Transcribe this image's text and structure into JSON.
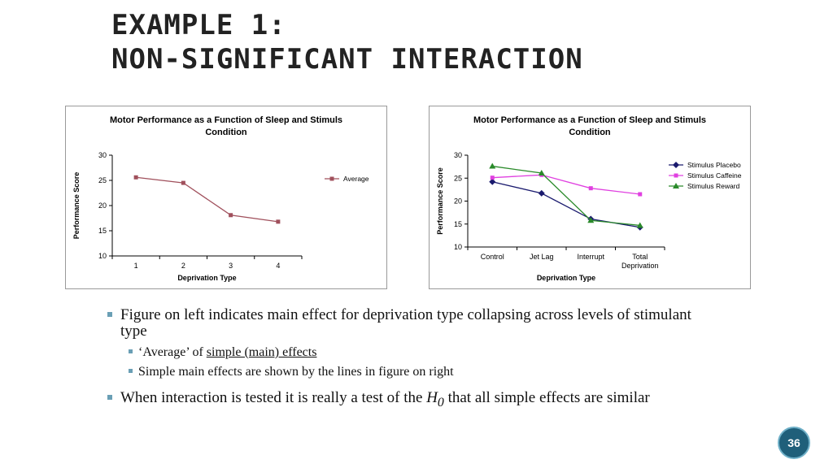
{
  "slide": {
    "title_line1": "Example 1:",
    "title_line2": "Non-Significant Interaction",
    "page_number": "36"
  },
  "chart_data": [
    {
      "type": "line",
      "title": "Motor Performance as a Function of Sleep and Stimuls Condition",
      "title_lines": [
        "Motor Performance as a Function of Sleep and Stimuls",
        "Condition"
      ],
      "xlabel": "Deprivation Type",
      "ylabel": "Performance Score",
      "categories": [
        "1",
        "2",
        "3",
        "4"
      ],
      "ylim": [
        10,
        30
      ],
      "yticks": [
        10,
        15,
        20,
        25,
        30
      ],
      "grid": false,
      "legend": "right",
      "series": [
        {
          "name": "Average",
          "values": [
            25.6,
            24.5,
            18.1,
            16.8
          ],
          "color": "#a0505c",
          "marker": "square"
        }
      ]
    },
    {
      "type": "line",
      "title": "Motor Performance as a Function of Sleep and Stimuls Condition",
      "title_lines": [
        "Motor Performance as a Function of Sleep and Stimuls",
        "Condition"
      ],
      "xlabel": "Deprivation Type",
      "ylabel": "Performance Score",
      "categories": [
        "Control",
        "Jet Lag",
        "Interrupt",
        "Total Deprivation"
      ],
      "category_lines": [
        [
          "Control"
        ],
        [
          "Jet Lag"
        ],
        [
          "Interrupt"
        ],
        [
          "Total",
          "Deprivation"
        ]
      ],
      "ylim": [
        10,
        30
      ],
      "yticks": [
        10,
        15,
        20,
        25,
        30
      ],
      "grid": false,
      "legend": "top-right",
      "series": [
        {
          "name": "Stimulus Placebo",
          "values": [
            24.2,
            21.7,
            16.1,
            14.3
          ],
          "color": "#1a1a6e",
          "marker": "diamond"
        },
        {
          "name": "Stimulus Caffeine",
          "values": [
            25.1,
            25.7,
            22.8,
            21.5
          ],
          "color": "#e040e0",
          "marker": "square"
        },
        {
          "name": "Stimulus Reward",
          "values": [
            27.6,
            26.1,
            15.8,
            14.7
          ],
          "color": "#2a8a2a",
          "marker": "triangle"
        }
      ]
    }
  ],
  "bullets": {
    "b1_text": "Figure on left indicates main effect for deprivation type collapsing across levels of stimulant type",
    "b1a_prefix": "‘Average’ of ",
    "b1a_link": "simple (main) effects",
    "b1b_text": "Simple main effects are shown by the lines in figure on right",
    "b2_prefix": "When interaction is tested it is really a test of the ",
    "b2_h": "H",
    "b2_sub": "0",
    "b2_suffix": " that all simple effects are similar"
  }
}
